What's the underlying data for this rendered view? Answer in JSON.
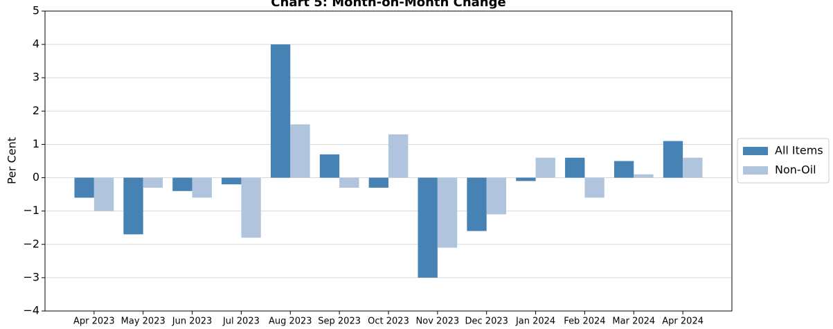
{
  "chart_data": {
    "type": "bar",
    "title": "Chart 5: Month-on-Month Change",
    "y_label": "Per Cent",
    "categories": [
      "Apr 2023",
      "May 2023",
      "Jun 2023",
      "Jul 2023",
      "Aug 2023",
      "Sep 2023",
      "Oct 2023",
      "Nov 2023",
      "Dec 2023",
      "Jan 2024",
      "Feb 2024",
      "Mar 2024",
      "Apr 2024"
    ],
    "series": [
      {
        "name": "All Items",
        "color": "#4682b4",
        "values": [
          -0.6,
          -1.7,
          -0.4,
          -0.2,
          4.0,
          0.7,
          -0.3,
          -3.0,
          -1.6,
          -0.1,
          0.6,
          0.5,
          1.1
        ]
      },
      {
        "name": "Non-Oil",
        "color": "#b0c4de",
        "values": [
          -1.0,
          -0.3,
          -0.6,
          -1.8,
          1.6,
          -0.3,
          1.3,
          -2.1,
          -1.1,
          0.6,
          -0.6,
          0.1,
          0.6
        ]
      }
    ],
    "ylim": [
      -4,
      5
    ],
    "yticks": [
      {
        "value": -4,
        "label": "−4"
      },
      {
        "value": -3,
        "label": "−3"
      },
      {
        "value": -2,
        "label": "−2"
      },
      {
        "value": -1,
        "label": "−1"
      },
      0,
      1,
      2,
      3,
      4,
      5
    ],
    "grid": true,
    "legend": "right"
  }
}
